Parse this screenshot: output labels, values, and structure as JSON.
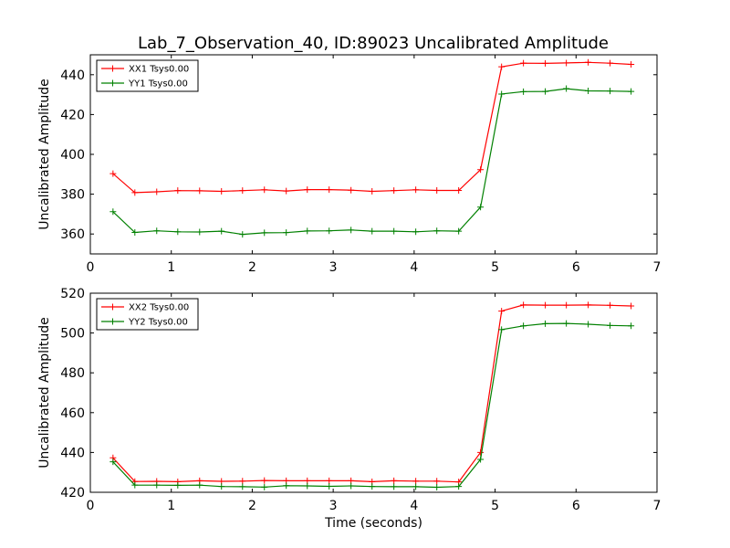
{
  "title": "Lab_7_Observation_40, ID:89023 Uncalibrated Amplitude",
  "chart_data": [
    {
      "type": "line",
      "title": "Lab_7_Observation_40, ID:89023 Uncalibrated Amplitude",
      "xlabel": "",
      "ylabel": "Uncalibrated Amplitude",
      "xlim": [
        0,
        7
      ],
      "ylim": [
        350,
        450
      ],
      "xticks": [
        0,
        1,
        2,
        3,
        4,
        5,
        6,
        7
      ],
      "yticks": [
        360,
        380,
        400,
        420,
        440
      ],
      "grid": false,
      "legend_position": "top-left",
      "x": [
        0.28,
        0.55,
        0.82,
        1.08,
        1.35,
        1.62,
        1.88,
        2.15,
        2.42,
        2.68,
        2.95,
        3.22,
        3.48,
        3.75,
        4.02,
        4.28,
        4.55,
        4.82,
        5.08,
        5.35,
        5.62,
        5.88,
        6.15,
        6.42,
        6.68
      ],
      "series": [
        {
          "name": "XX1 Tsys0.00",
          "color": "#ff0000",
          "values": [
            390.3,
            380.8,
            381.2,
            381.8,
            381.7,
            381.4,
            381.8,
            382.2,
            381.6,
            382.3,
            382.3,
            382.0,
            381.4,
            381.8,
            382.2,
            381.9,
            381.9,
            392.3,
            444.0,
            445.8,
            445.7,
            445.9,
            446.2,
            445.8,
            445.2
          ]
        },
        {
          "name": "YY1 Tsys0.00",
          "color": "#008000",
          "values": [
            371.2,
            360.8,
            361.6,
            361.1,
            361.0,
            361.4,
            359.8,
            360.6,
            360.7,
            361.5,
            361.6,
            362.0,
            361.4,
            361.4,
            361.1,
            361.6,
            361.4,
            373.5,
            430.3,
            431.5,
            431.6,
            433.0,
            431.9,
            431.8,
            431.6
          ]
        }
      ]
    },
    {
      "type": "line",
      "title": "",
      "xlabel": "Time (seconds)",
      "ylabel": "Uncalibrated Amplitude",
      "xlim": [
        0,
        7
      ],
      "ylim": [
        420,
        520
      ],
      "xticks": [
        0,
        1,
        2,
        3,
        4,
        5,
        6,
        7
      ],
      "yticks": [
        420,
        440,
        460,
        480,
        500,
        520
      ],
      "grid": false,
      "legend_position": "top-left",
      "x": [
        0.28,
        0.55,
        0.82,
        1.08,
        1.35,
        1.62,
        1.88,
        2.15,
        2.42,
        2.68,
        2.95,
        3.22,
        3.48,
        3.75,
        4.02,
        4.28,
        4.55,
        4.82,
        5.08,
        5.35,
        5.62,
        5.88,
        6.15,
        6.42,
        6.68
      ],
      "series": [
        {
          "name": "XX2 Tsys0.00",
          "color": "#ff0000",
          "values": [
            437.3,
            425.4,
            425.5,
            425.3,
            425.8,
            425.5,
            425.6,
            425.9,
            425.8,
            425.8,
            425.8,
            425.8,
            425.3,
            425.8,
            425.6,
            425.6,
            425.2,
            440.0,
            511.0,
            514.1,
            514.0,
            514.0,
            514.1,
            513.9,
            513.6
          ]
        },
        {
          "name": "YY2 Tsys0.00",
          "color": "#008000",
          "values": [
            435.3,
            423.6,
            423.6,
            423.5,
            423.6,
            422.9,
            422.8,
            422.6,
            423.3,
            423.2,
            423.0,
            423.2,
            422.9,
            422.8,
            422.8,
            422.5,
            422.9,
            436.5,
            501.7,
            503.6,
            504.7,
            504.8,
            504.4,
            503.8,
            503.6
          ]
        }
      ]
    }
  ]
}
